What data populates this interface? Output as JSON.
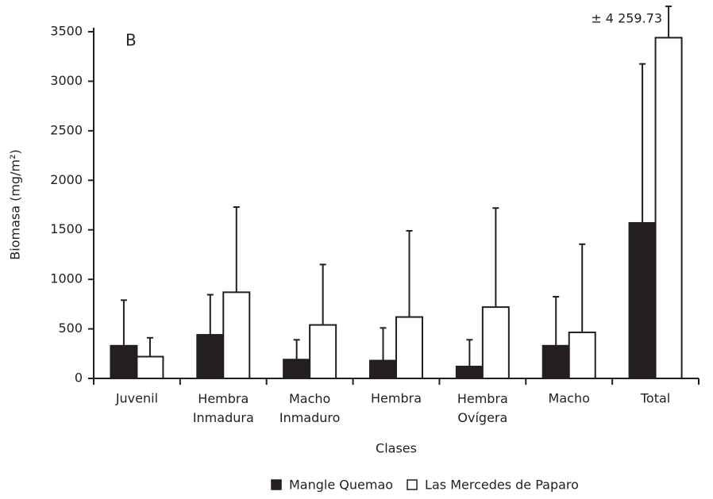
{
  "chart_data": {
    "type": "bar",
    "panel_label": "B",
    "y_label": "Biomasa (mg/m²)",
    "x_label": "Clases",
    "categories": [
      "Juvenil",
      "Hembra Inmadura",
      "Macho Inmaduro",
      "Hembra",
      "Hembra Ovígera",
      "Macho",
      "Total"
    ],
    "series": [
      {
        "name": "Mangle Quemao",
        "color": "#231f20",
        "values": [
          330,
          440,
          190,
          180,
          120,
          330,
          1570
        ],
        "errors": [
          460,
          405,
          200,
          330,
          270,
          495,
          1605
        ]
      },
      {
        "name": "Las Mercedes de Paparo",
        "color": "#ffffff",
        "values": [
          220,
          870,
          540,
          620,
          720,
          465,
          3440
        ],
        "errors": [
          190,
          860,
          610,
          870,
          1000,
          890,
          4259.73
        ],
        "error_labels": [
          null,
          null,
          null,
          null,
          null,
          null,
          "± 4 259.73"
        ]
      }
    ],
    "ylim": [
      0,
      3500
    ],
    "yticks": [
      0,
      500,
      1000,
      1500,
      2000,
      2500,
      3000,
      3500
    ],
    "legend": "bottom"
  }
}
